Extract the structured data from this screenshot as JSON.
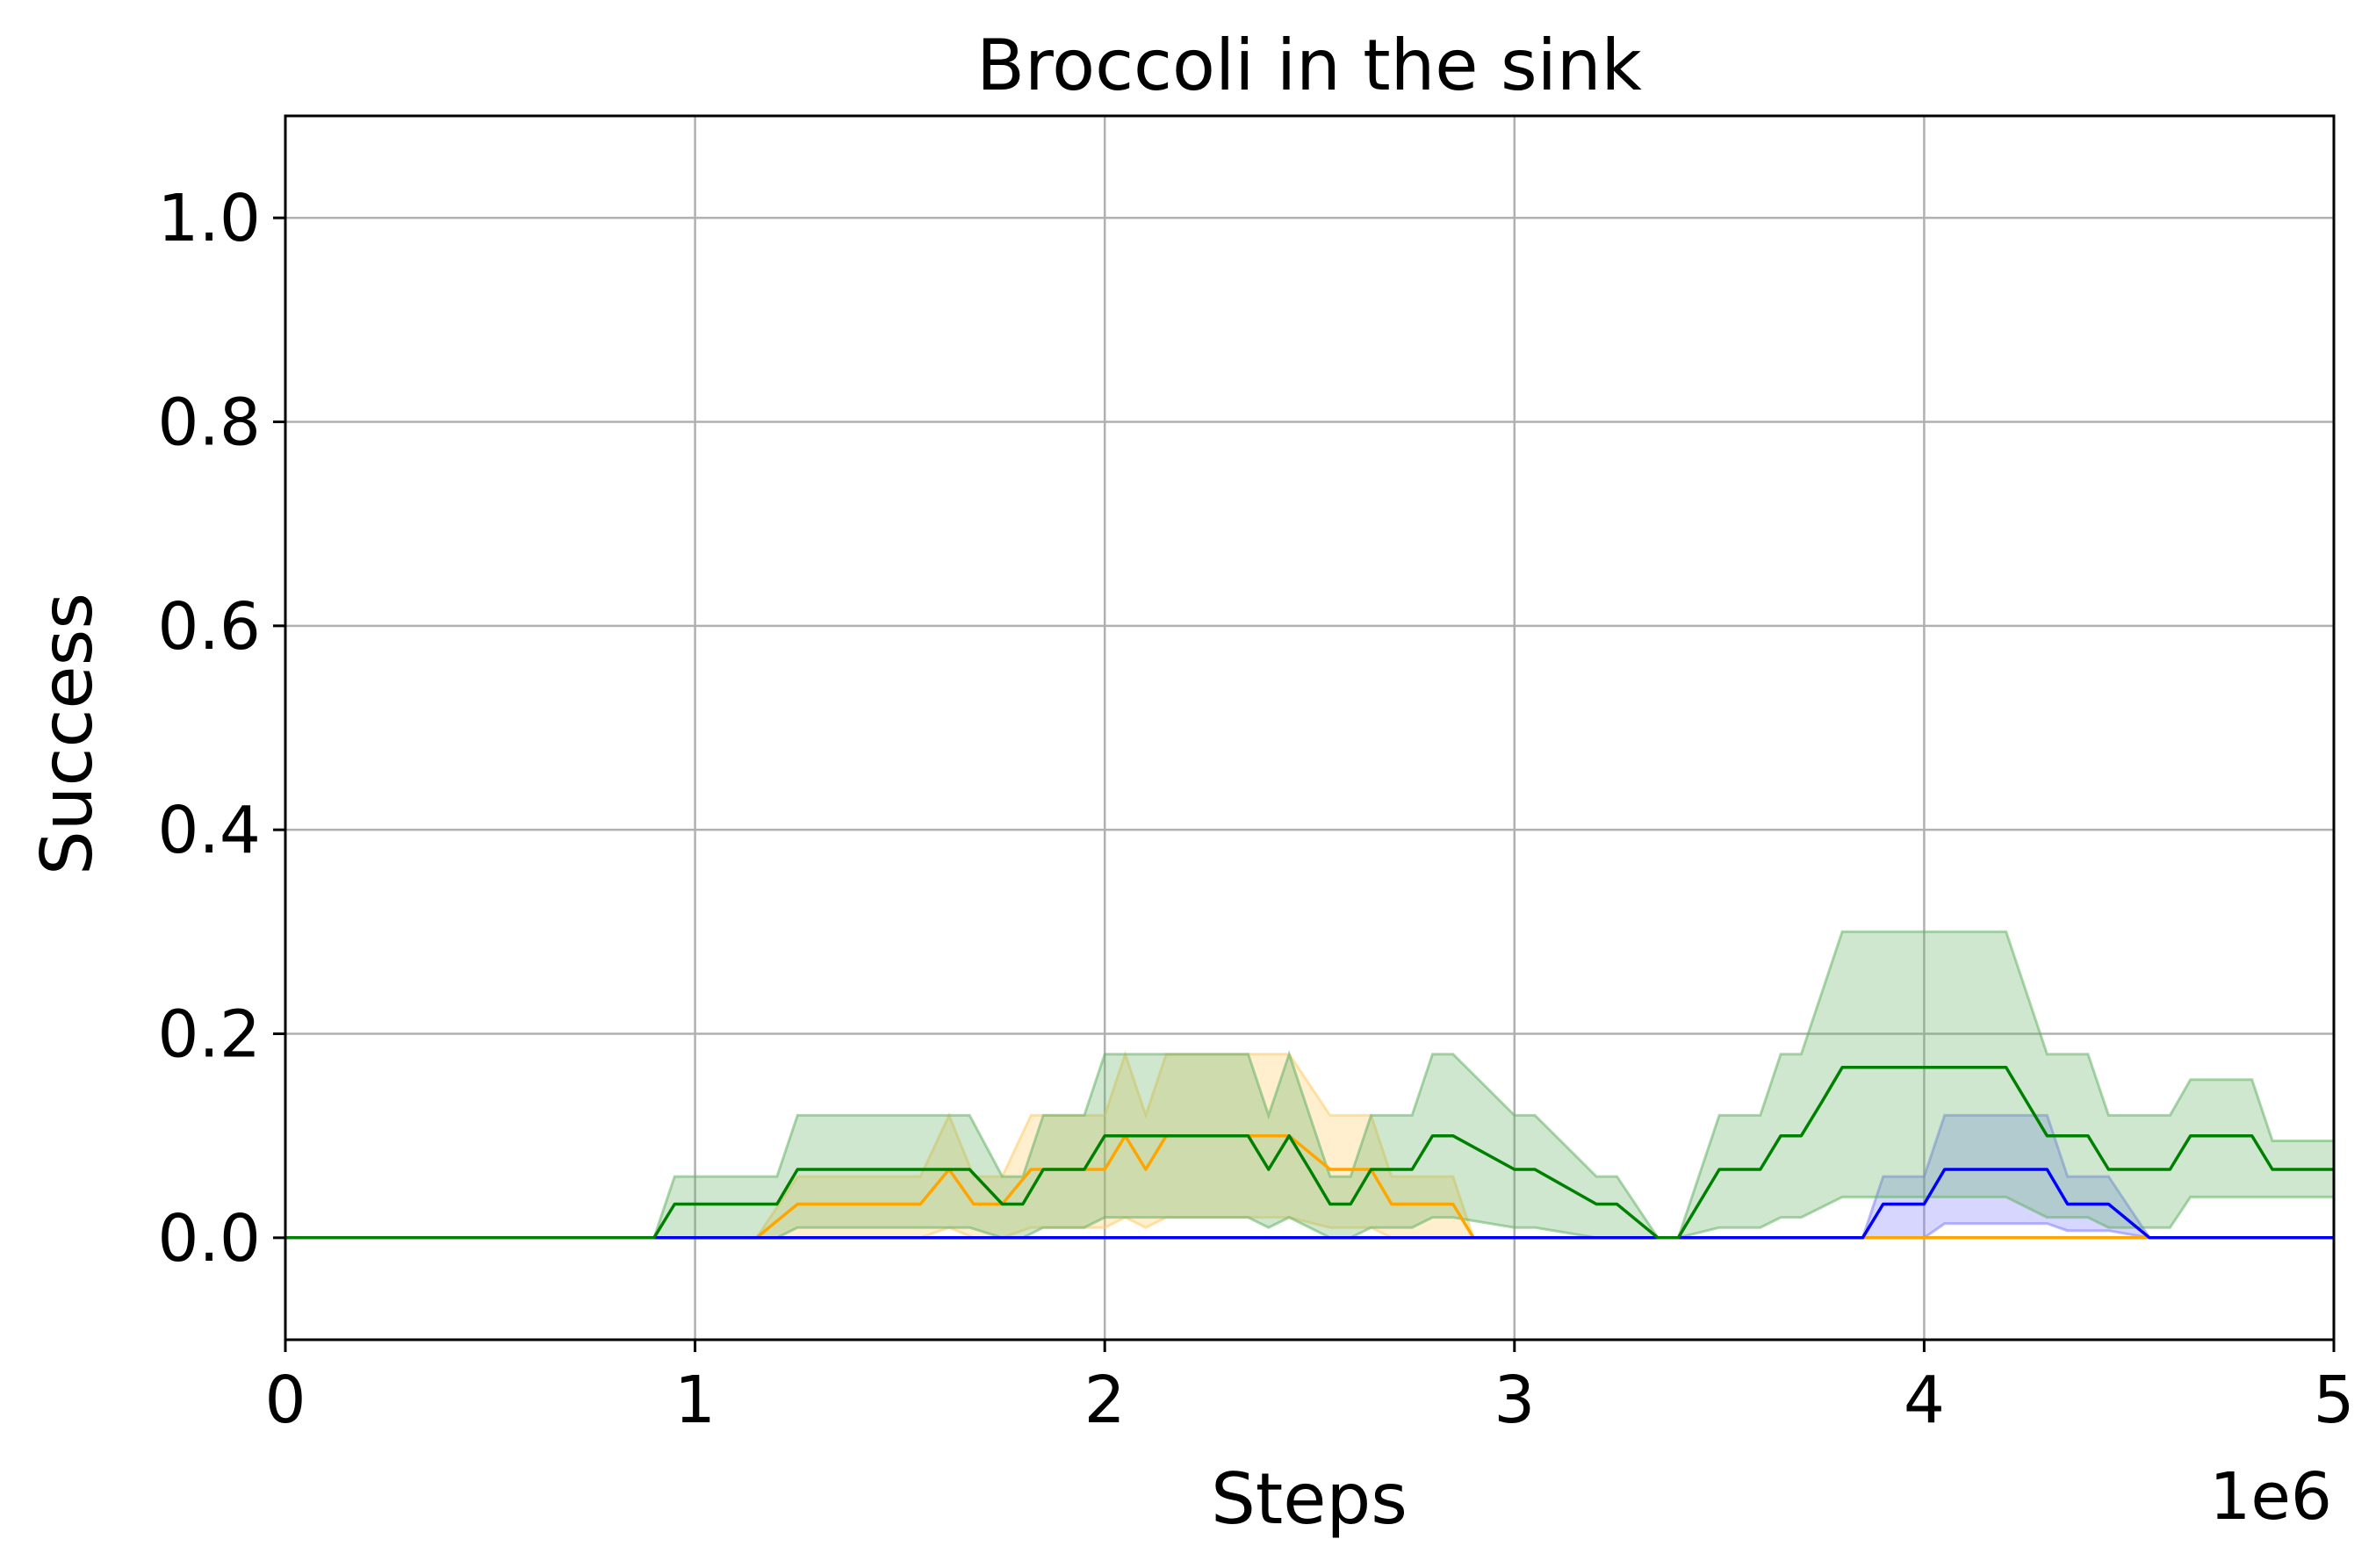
{
  "chart_data": {
    "type": "line",
    "title": "Broccoli in the sink",
    "xlabel": "Steps",
    "ylabel": "Success",
    "x_offset_label": "1e6",
    "xlim": [
      0,
      5
    ],
    "ylim": [
      -0.1,
      1.1
    ],
    "xticks": [
      0,
      1,
      2,
      3,
      4,
      5
    ],
    "xtick_labels": [
      "0",
      "1",
      "2",
      "3",
      "4",
      "5"
    ],
    "yticks": [
      0.0,
      0.2,
      0.4,
      0.6,
      0.8,
      1.0
    ],
    "ytick_labels": [
      "0.0",
      "0.2",
      "0.4",
      "0.6",
      "0.8",
      "1.0"
    ],
    "grid": true,
    "series": [
      {
        "color": "#ffa500",
        "fill_color": "#ffcc66",
        "x": [
          0,
          1.15,
          1.25,
          1.55,
          1.62,
          1.68,
          1.75,
          1.82,
          1.9,
          2.0,
          2.05,
          2.1,
          2.15,
          2.2,
          2.3,
          2.45,
          2.55,
          2.65,
          2.7,
          2.8,
          2.85,
          2.9,
          5.0
        ],
        "y": [
          0,
          0,
          0.033,
          0.033,
          0.067,
          0.033,
          0.033,
          0.067,
          0.067,
          0.067,
          0.1,
          0.067,
          0.1,
          0.1,
          0.1,
          0.1,
          0.067,
          0.067,
          0.033,
          0.033,
          0.033,
          0,
          0
        ],
        "lower": [
          0,
          0,
          0,
          0,
          0.01,
          0,
          0,
          0.01,
          0.01,
          0.01,
          0.02,
          0.01,
          0.02,
          0.02,
          0.02,
          0.02,
          0.01,
          0.01,
          0,
          0,
          0,
          0,
          0
        ],
        "upper": [
          0,
          0,
          0.06,
          0.06,
          0.12,
          0.06,
          0.06,
          0.12,
          0.12,
          0.12,
          0.18,
          0.12,
          0.18,
          0.18,
          0.18,
          0.18,
          0.12,
          0.12,
          0.06,
          0.06,
          0.06,
          0,
          0
        ]
      },
      {
        "color": "#0000ff",
        "fill_color": "#8080ff",
        "x": [
          0,
          3.85,
          3.9,
          4.0,
          4.05,
          4.15,
          4.3,
          4.35,
          4.45,
          4.55,
          5.0
        ],
        "y": [
          0,
          0,
          0.033,
          0.033,
          0.067,
          0.067,
          0.067,
          0.033,
          0.033,
          0,
          0
        ],
        "lower": [
          0,
          0,
          0,
          0,
          0.014,
          0.014,
          0.014,
          0.007,
          0.007,
          0,
          0
        ],
        "upper": [
          0,
          0,
          0.06,
          0.06,
          0.12,
          0.12,
          0.12,
          0.06,
          0.06,
          0,
          0
        ]
      },
      {
        "color": "#008000",
        "fill_color": "#66b366",
        "x": [
          0,
          0.9,
          0.95,
          1.2,
          1.25,
          1.6,
          1.67,
          1.75,
          1.8,
          1.85,
          1.95,
          2.0,
          2.05,
          2.35,
          2.4,
          2.45,
          2.5,
          2.55,
          2.6,
          2.65,
          2.75,
          2.8,
          2.85,
          3.0,
          3.05,
          3.2,
          3.25,
          3.35,
          3.4,
          3.5,
          3.6,
          3.65,
          3.7,
          3.75,
          3.8,
          3.9,
          4.2,
          4.3,
          4.4,
          4.45,
          4.55,
          4.6,
          4.65,
          4.8,
          4.85,
          4.9,
          5.0
        ],
        "y": [
          0,
          0,
          0.033,
          0.033,
          0.067,
          0.067,
          0.067,
          0.033,
          0.033,
          0.067,
          0.067,
          0.1,
          0.1,
          0.1,
          0.067,
          0.1,
          0.067,
          0.033,
          0.033,
          0.067,
          0.067,
          0.1,
          0.1,
          0.067,
          0.067,
          0.033,
          0.033,
          0,
          0,
          0.067,
          0.067,
          0.1,
          0.1,
          0.133,
          0.167,
          0.167,
          0.167,
          0.1,
          0.1,
          0.067,
          0.067,
          0.067,
          0.1,
          0.1,
          0.067,
          0.067,
          0.067
        ],
        "lower": [
          0,
          0,
          0,
          0,
          0.01,
          0.01,
          0.01,
          0,
          0,
          0.01,
          0.01,
          0.02,
          0.02,
          0.02,
          0.01,
          0.02,
          0.01,
          0,
          0,
          0.01,
          0.01,
          0.02,
          0.02,
          0.01,
          0.01,
          0,
          0,
          0,
          0,
          0.01,
          0.01,
          0.02,
          0.02,
          0.03,
          0.04,
          0.04,
          0.04,
          0.02,
          0.02,
          0.01,
          0.01,
          0.01,
          0.04,
          0.04,
          0.04,
          0.04,
          0.04
        ],
        "upper": [
          0,
          0,
          0.06,
          0.06,
          0.12,
          0.12,
          0.12,
          0.06,
          0.06,
          0.12,
          0.12,
          0.18,
          0.18,
          0.18,
          0.12,
          0.18,
          0.12,
          0.06,
          0.06,
          0.12,
          0.12,
          0.18,
          0.18,
          0.12,
          0.12,
          0.06,
          0.06,
          0,
          0,
          0.12,
          0.12,
          0.18,
          0.18,
          0.24,
          0.3,
          0.3,
          0.3,
          0.18,
          0.18,
          0.12,
          0.12,
          0.12,
          0.155,
          0.155,
          0.095,
          0.095,
          0.095
        ]
      }
    ]
  }
}
